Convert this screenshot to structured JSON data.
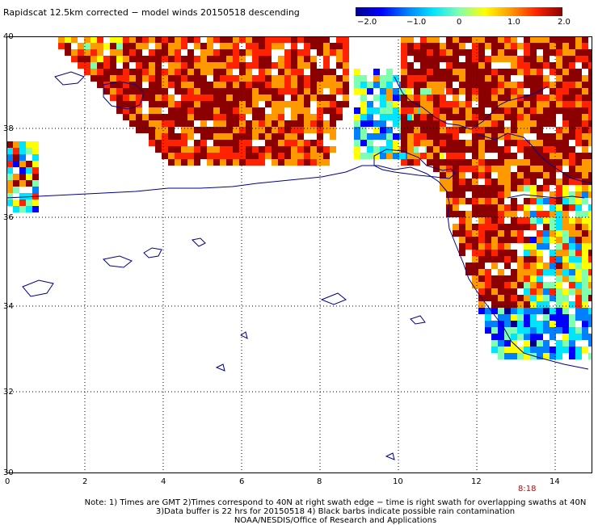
{
  "title": "Rapidscat 12.5km corrected − model winds 20150518 descending",
  "colorbar": {
    "ticks": [
      "−2.0",
      "−1.0",
      "0",
      "1.0",
      "2.0"
    ],
    "colors": [
      "#00008b",
      "#0000ff",
      "#0080ff",
      "#00e5ff",
      "#7fffb0",
      "#ffff00",
      "#ff9900",
      "#ff2200",
      "#8b0000"
    ]
  },
  "map": {
    "y_labels": [
      "40",
      "38",
      "36",
      "34",
      "32",
      "30"
    ],
    "x_labels": [
      "0",
      "2",
      "4",
      "6",
      "8",
      "10",
      "12",
      "14"
    ],
    "grid": "dotted",
    "coast_color": "#00008b",
    "swath_time": "8:18"
  },
  "notes": [
    "Note: 1) Times are GMT 2)Times correspond to 40N at right swath edge − time is right swath for overlapping swaths at 40N",
    "3)Data buffer is 22 hrs for 20150518 4) Black barbs indicate possible rain contamination",
    "NOAA/NESDIS/Office of Research and Applications"
  ]
}
